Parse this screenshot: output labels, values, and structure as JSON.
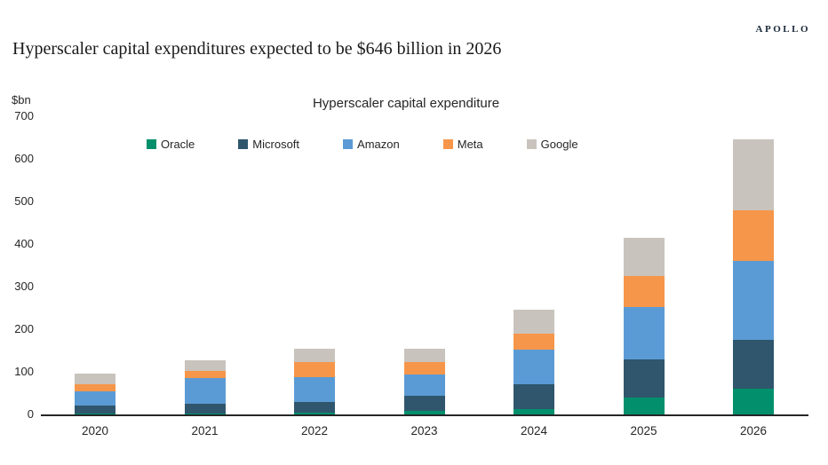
{
  "header": {
    "logo": "APOLLO",
    "title": "Hyperscaler capital expenditures expected to be $646 billion in 2026"
  },
  "chart_data": {
    "type": "bar",
    "stacked": true,
    "title": "Hyperscaler capital expenditure",
    "unit_label": "$bn",
    "categories": [
      "2020",
      "2021",
      "2022",
      "2023",
      "2024",
      "2025",
      "2026"
    ],
    "series": [
      {
        "name": "Oracle",
        "color": "#018f6c",
        "values": [
          2,
          2,
          5,
          8,
          13,
          40,
          60
        ]
      },
      {
        "name": "Microsoft",
        "color": "#2f566c",
        "values": [
          19,
          24,
          25,
          35,
          58,
          90,
          115
        ]
      },
      {
        "name": "Amazon",
        "color": "#5b9bd5",
        "values": [
          34,
          59,
          58,
          51,
          82,
          123,
          185
        ]
      },
      {
        "name": "Meta",
        "color": "#f6964a",
        "values": [
          16,
          17,
          34,
          28,
          37,
          72,
          120
        ]
      },
      {
        "name": "Google",
        "color": "#c9c3bd",
        "values": [
          24,
          25,
          33,
          33,
          55,
          90,
          166
        ]
      }
    ],
    "totals": [
      95,
      127,
      155,
      155,
      245,
      415,
      646
    ],
    "xlabel": "",
    "ylabel": "$bn",
    "ylim": [
      0,
      700
    ],
    "yticks": [
      0,
      100,
      200,
      300,
      400,
      500,
      600,
      700
    ],
    "grid": false,
    "legend_position": "top"
  }
}
